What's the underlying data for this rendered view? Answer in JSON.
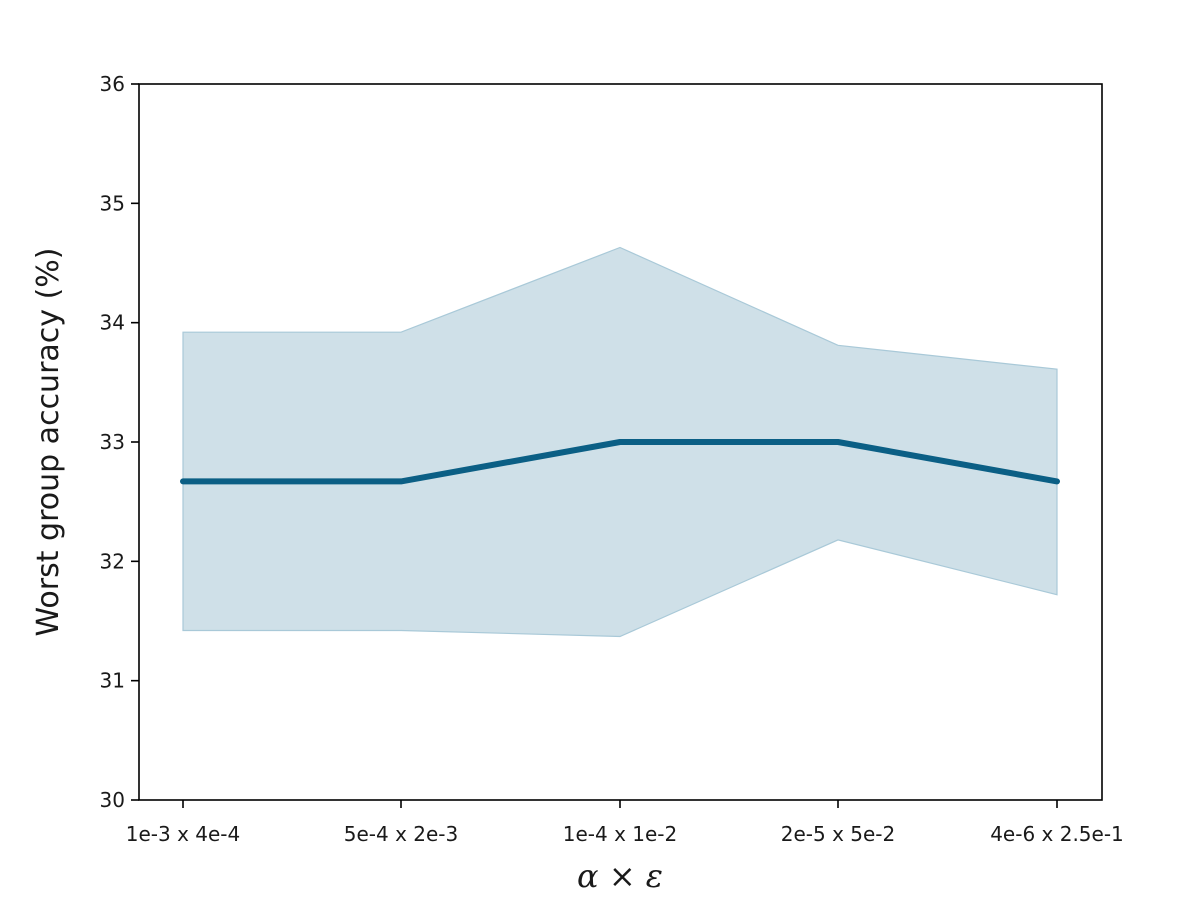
{
  "chart_data": {
    "type": "line",
    "title": "",
    "xlabel": "α × ε",
    "ylabel": "Worst group accuracy (%)",
    "categories": [
      "1e-3 x 4e-4",
      "5e-4 x 2e-3",
      "1e-4 x 1e-2",
      "2e-5 x 5e-2",
      "4e-6 x 2.5e-1"
    ],
    "ylim": [
      30,
      36
    ],
    "yticks": [
      "30",
      "31",
      "32",
      "33",
      "34",
      "35",
      "36"
    ],
    "grid": false,
    "series": [
      {
        "values": [
          32.67,
          32.67,
          33.0,
          33.0,
          32.67
        ],
        "band_upper": [
          33.92,
          33.92,
          34.63,
          33.81,
          33.61
        ],
        "band_lower": [
          31.42,
          31.42,
          31.37,
          32.18,
          31.72
        ],
        "color": "#0b5f85",
        "band_color": "#cfe0e8"
      }
    ]
  }
}
